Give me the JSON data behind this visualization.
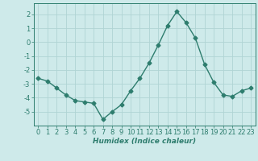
{
  "x": [
    0,
    1,
    2,
    3,
    4,
    5,
    6,
    7,
    8,
    9,
    10,
    11,
    12,
    13,
    14,
    15,
    16,
    17,
    18,
    19,
    20,
    21,
    22,
    23
  ],
  "y": [
    -2.6,
    -2.8,
    -3.3,
    -3.8,
    -4.2,
    -4.3,
    -4.4,
    -5.55,
    -5.0,
    -4.5,
    -3.5,
    -2.6,
    -1.5,
    -0.2,
    1.2,
    2.2,
    1.4,
    0.3,
    -1.6,
    -2.9,
    -3.8,
    -3.9,
    -3.5,
    -3.3
  ],
  "line_color": "#2e7d6e",
  "marker": "D",
  "marker_size": 2.5,
  "bg_color": "#ceeaea",
  "grid_color": "#b0d4d4",
  "xlabel": "Humidex (Indice chaleur)",
  "xlim": [
    -0.5,
    23.5
  ],
  "ylim": [
    -6,
    2.8
  ],
  "yticks": [
    -5,
    -4,
    -3,
    -2,
    -1,
    0,
    1,
    2
  ],
  "xticks": [
    0,
    1,
    2,
    3,
    4,
    5,
    6,
    7,
    8,
    9,
    10,
    11,
    12,
    13,
    14,
    15,
    16,
    17,
    18,
    19,
    20,
    21,
    22,
    23
  ],
  "xlabel_fontsize": 6.5,
  "tick_fontsize": 6.0,
  "axis_color": "#2e7d6e",
  "line_width": 1.0
}
